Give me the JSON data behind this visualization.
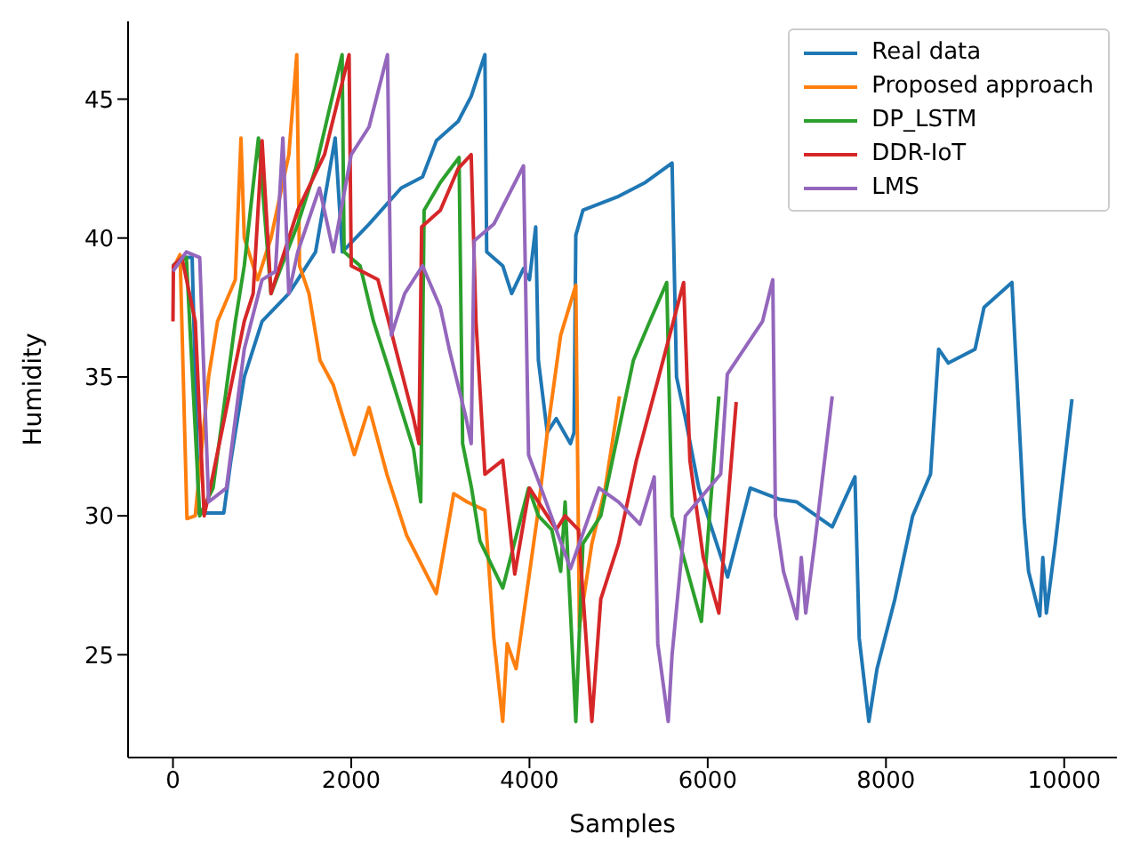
{
  "chart_data": {
    "type": "line",
    "xlabel": "Samples",
    "ylabel": "Humidity",
    "xlim": [
      -504,
      10591
    ],
    "ylim": [
      21.3,
      47.8
    ],
    "xticks": [
      0,
      2000,
      4000,
      6000,
      8000,
      10000
    ],
    "yticks": [
      25,
      30,
      35,
      40,
      45
    ],
    "legend": "top right",
    "series": [
      {
        "name": "Real data",
        "color": "#1f77b4",
        "x": [
          0,
          100,
          215,
          290,
          570,
          650,
          800,
          1000,
          1300,
          1600,
          1820,
          1900,
          2200,
          2560,
          2800,
          2955,
          3200,
          3346,
          3500,
          3520,
          3700,
          3800,
          3933,
          4000,
          4070,
          4100,
          4200,
          4300,
          4460,
          4500,
          4520,
          4600,
          5000,
          5300,
          5600,
          5650,
          5750,
          5900,
          6050,
          6223,
          6477,
          6800,
          7000,
          7397,
          7652,
          7700,
          7808,
          7900,
          8100,
          8300,
          8500,
          8591,
          8700,
          9000,
          9100,
          9413,
          9550,
          9600,
          9726,
          9760,
          9800,
          9900,
          10087
        ],
        "values": [
          39,
          39.3,
          39.3,
          30.1,
          30.1,
          32,
          35,
          37,
          38,
          39.5,
          43.6,
          39.5,
          40.5,
          41.8,
          42.2,
          43.5,
          44.2,
          45.1,
          46.6,
          39.5,
          39,
          38,
          38.9,
          38.5,
          40.4,
          35.6,
          33,
          33.5,
          32.6,
          33,
          40.1,
          41,
          41.5,
          42,
          42.7,
          35,
          33.5,
          31,
          29.5,
          27.8,
          31,
          30.6,
          30.5,
          29.6,
          31.4,
          25.6,
          22.6,
          24.5,
          27,
          30,
          31.5,
          36,
          35.5,
          36,
          37.5,
          38.4,
          29.9,
          28,
          26.4,
          28.5,
          26.5,
          29,
          34.2
        ]
      },
      {
        "name": "Proposed approach",
        "color": "#ff7f0e",
        "x": [
          0,
          80,
          157,
          250,
          400,
          500,
          700,
          763,
          800,
          950,
          1100,
          1300,
          1389,
          1420,
          1526,
          1650,
          1800,
          2035,
          2200,
          2400,
          2622,
          2955,
          3150,
          3300,
          3500,
          3600,
          3700,
          3750,
          3850,
          4090,
          4200,
          4350,
          4520,
          4560,
          4700,
          4850,
          5010
        ],
        "values": [
          38.9,
          39.4,
          29.9,
          30,
          35,
          37,
          38.5,
          43.6,
          40,
          38.5,
          40,
          43,
          46.6,
          39,
          38,
          35.6,
          34.7,
          32.2,
          33.9,
          31.5,
          29.3,
          27.2,
          30.8,
          30.5,
          30.2,
          25.6,
          22.6,
          25.4,
          24.5,
          30,
          33,
          36.5,
          38.3,
          26,
          29,
          31,
          34.3
        ]
      },
      {
        "name": "DP_LSTM",
        "color": "#2ca02c",
        "x": [
          0,
          150,
          300,
          450,
          700,
          800,
          959,
          1100,
          1400,
          1600,
          1898,
          1920,
          2100,
          2250,
          2400,
          2700,
          2780,
          2818,
          3000,
          3210,
          3250,
          3350,
          3444,
          3700,
          3990,
          4100,
          4250,
          4350,
          4400,
          4520,
          4600,
          4800,
          5166,
          5350,
          5540,
          5600,
          5929,
          6125
        ],
        "values": [
          39,
          39.3,
          30,
          31,
          37,
          39,
          43.6,
          38,
          40.5,
          42.5,
          46.6,
          39.5,
          39,
          37,
          35.5,
          32.4,
          30.5,
          41,
          42,
          42.9,
          32.6,
          31,
          29.1,
          27.4,
          31,
          30,
          29.5,
          28,
          30.5,
          22.6,
          29,
          30,
          35.6,
          37,
          38.4,
          30,
          26.2,
          34.3
        ]
      },
      {
        "name": "DDR-IoT",
        "color": "#d62728",
        "x": [
          0,
          5,
          100,
          250,
          350,
          450,
          800,
          900,
          1000,
          1100,
          1400,
          1700,
          1976,
          2000,
          2300,
          2500,
          2700,
          2760,
          2790,
          3000,
          3200,
          3346,
          3400,
          3500,
          3700,
          3835,
          4000,
          4200,
          4300,
          4400,
          4550,
          4700,
          4800,
          5000,
          5200,
          5450,
          5730,
          5800,
          5950,
          6125,
          6320
        ],
        "values": [
          37,
          39,
          39.3,
          37,
          30,
          31.5,
          37,
          38,
          43.5,
          38,
          41,
          43,
          46.6,
          39,
          38.5,
          36,
          33.5,
          32.6,
          40.4,
          41,
          42.5,
          43,
          37,
          31.5,
          32,
          27.9,
          31,
          30,
          29.5,
          30,
          29.5,
          22.6,
          27,
          29,
          32,
          35,
          38.4,
          32,
          28.5,
          26.5,
          34.1
        ]
      },
      {
        "name": "LMS",
        "color": "#9467bd",
        "x": [
          0,
          150,
          300,
          400,
          600,
          800,
          1000,
          1150,
          1233,
          1300,
          1400,
          1644,
          1800,
          2000,
          2200,
          2407,
          2450,
          2600,
          2800,
          3000,
          3100,
          3290,
          3346,
          3380,
          3600,
          3933,
          3990,
          4130,
          4300,
          4460,
          4780,
          5000,
          5240,
          5400,
          5440,
          5557,
          5600,
          5750,
          6145,
          6220,
          6615,
          6730,
          6760,
          6850,
          7000,
          7050,
          7100,
          7200,
          7397
        ],
        "values": [
          38.8,
          39.5,
          39.3,
          30.5,
          31,
          36,
          38.5,
          38.8,
          43.6,
          38,
          39.5,
          41.8,
          39.5,
          43,
          44,
          46.6,
          36.5,
          38,
          39,
          37.5,
          36,
          33.5,
          32.6,
          39.9,
          40.5,
          42.6,
          32.2,
          31,
          29.5,
          28.1,
          31,
          30.5,
          29.7,
          31.4,
          25.4,
          22.6,
          25,
          30,
          31.5,
          35.1,
          37,
          38.5,
          30,
          28,
          26.3,
          28.5,
          26.5,
          29,
          34.3
        ]
      }
    ]
  }
}
